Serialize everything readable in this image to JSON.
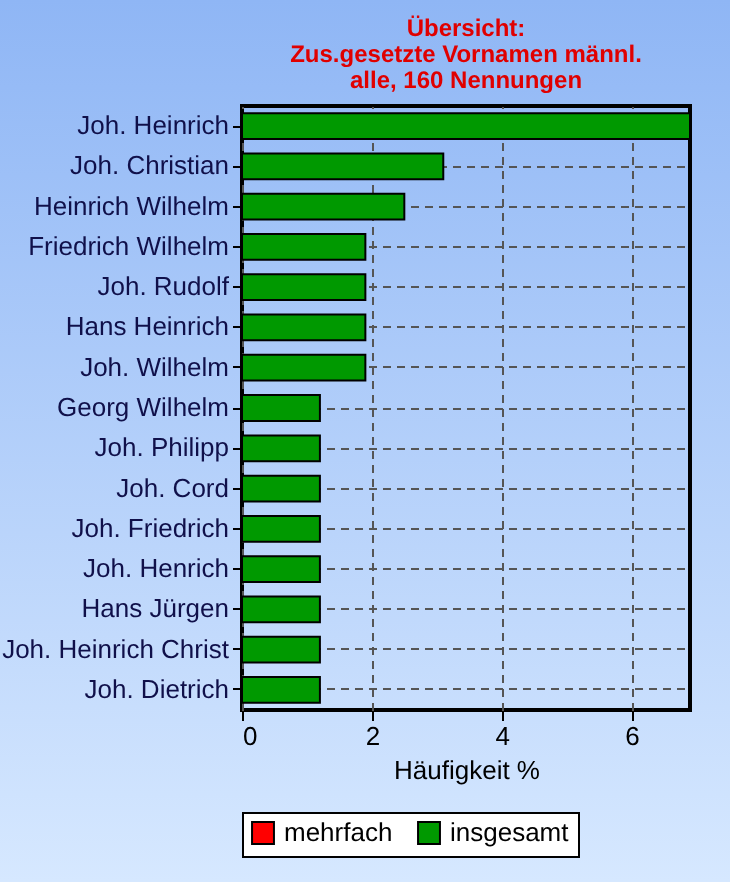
{
  "chart_data": {
    "type": "bar",
    "orientation": "horizontal",
    "title": "Übersicht:\nZus.gesetzte Vornamen männl.\nalle, 160 Nennungen",
    "xlabel": "Häufigkeit %",
    "categories": [
      "Joh. Heinrich",
      "Joh. Christian",
      "Heinrich Wilhelm",
      "Friedrich Wilhelm",
      "Joh. Rudolf",
      "Hans Heinrich",
      "Joh. Wilhelm",
      "Georg Wilhelm",
      "Joh. Philipp",
      "Joh. Cord",
      "Joh. Friedrich",
      "Joh. Henrich",
      "Hans Jürgen",
      "Joh. Heinrich Christ",
      "Joh. Dietrich"
    ],
    "series": [
      {
        "name": "mehrfach",
        "color": "#ff0000",
        "values": [
          null,
          null,
          null,
          null,
          null,
          null,
          null,
          null,
          null,
          null,
          null,
          null,
          null,
          null,
          null
        ]
      },
      {
        "name": "insgesamt",
        "color": "#009900",
        "values": [
          6.9,
          3.1,
          2.5,
          1.9,
          1.9,
          1.9,
          1.9,
          1.2,
          1.2,
          1.2,
          1.2,
          1.2,
          1.2,
          1.2,
          1.2
        ]
      }
    ],
    "xlim": [
      0,
      6.9
    ],
    "xticks": [
      0,
      2,
      4,
      6
    ],
    "grid": true,
    "legend": "bottom"
  }
}
